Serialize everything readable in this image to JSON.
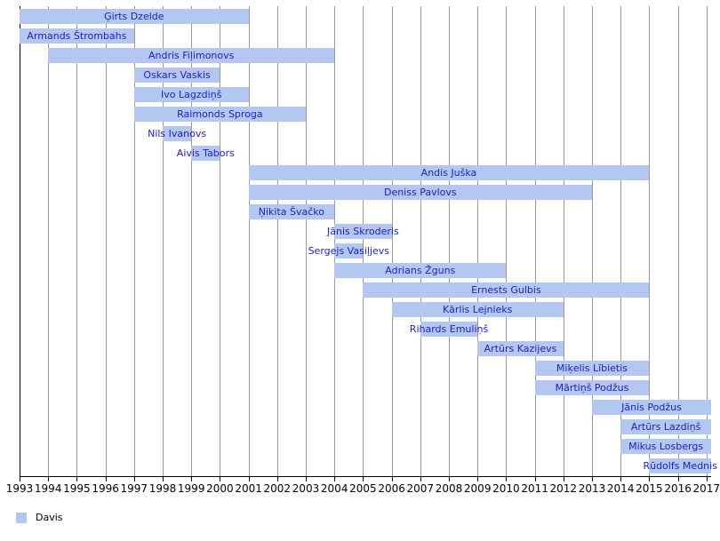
{
  "legend": {
    "label": "Davis"
  },
  "colors": {
    "background": "#ffffff",
    "bar_fill": "#b3c7f1",
    "bar_text": "#2020c0",
    "gridline": "#999999",
    "axis": "#000000",
    "label_text": "#000000"
  },
  "chart_data": {
    "type": "bar",
    "subtype": "gantt-timeline",
    "title": "",
    "xlabel": "",
    "ylabel": "",
    "grid": "vertical-yearly",
    "legend_entries": [
      "Davis"
    ],
    "legend_position": "bottom-left",
    "x_axis": {
      "min": 1993,
      "max": 2017.2,
      "tick_years": [
        1993,
        1994,
        1995,
        1996,
        1997,
        1998,
        1999,
        2000,
        2001,
        2002,
        2003,
        2004,
        2005,
        2006,
        2007,
        2008,
        2009,
        2010,
        2011,
        2012,
        2013,
        2014,
        2015,
        2016,
        2017
      ],
      "tick_labels": [
        "1993",
        "1994",
        "1995",
        "1996",
        "1997",
        "1998",
        "1999",
        "2000",
        "2001",
        "2002",
        "2003",
        "2004",
        "2005",
        "2006",
        "2007",
        "2008",
        "2009",
        "2010",
        "2011",
        "2012",
        "2013",
        "2014",
        "2015",
        "2016",
        "2017"
      ]
    },
    "bars": [
      {
        "name": "Ģirts Dzelde",
        "start": 1993,
        "end": 2001
      },
      {
        "name": "Armands Štrombahs",
        "start": 1993,
        "end": 1997
      },
      {
        "name": "Andris Fiļimonovs",
        "start": 1994,
        "end": 2004
      },
      {
        "name": "Oskars Vaskis",
        "start": 1997,
        "end": 2000
      },
      {
        "name": "Ivo Lagzdiņš",
        "start": 1997,
        "end": 2001
      },
      {
        "name": "Raimonds Sproga",
        "start": 1997,
        "end": 2003
      },
      {
        "name": "Nils Ivanovs",
        "start": 1998,
        "end": 1999
      },
      {
        "name": "Aivis Tabors",
        "start": 1999,
        "end": 2000
      },
      {
        "name": "Andis Juška",
        "start": 2001,
        "end": 2015
      },
      {
        "name": "Deniss Pavlovs",
        "start": 2001,
        "end": 2013
      },
      {
        "name": "Ņikita Švačko",
        "start": 2001,
        "end": 2004
      },
      {
        "name": "Jānis Skroderis",
        "start": 2004,
        "end": 2006
      },
      {
        "name": "Sergejs Vasiļjevs",
        "start": 2004,
        "end": 2005
      },
      {
        "name": "Adrians Žguns",
        "start": 2004,
        "end": 2010
      },
      {
        "name": "Ernests Gulbis",
        "start": 2005,
        "end": 2015
      },
      {
        "name": "Kārlis Lejnieks",
        "start": 2006,
        "end": 2012
      },
      {
        "name": "Rihards Emuliņš",
        "start": 2007,
        "end": 2009
      },
      {
        "name": "Artūrs Kazijevs",
        "start": 2009,
        "end": 2012
      },
      {
        "name": "Miķelis Lībietis",
        "start": 2011,
        "end": 2015
      },
      {
        "name": "Mārtiņš Podžus",
        "start": 2011,
        "end": 2015
      },
      {
        "name": "Jānis Podžus",
        "start": 2013,
        "end": 2017.2,
        "clipped_right": true
      },
      {
        "name": "Artūrs Lazdiņš",
        "start": 2014,
        "end": 2017.2,
        "clipped_right": true
      },
      {
        "name": "Mikus Losbergs",
        "start": 2014,
        "end": 2017.2,
        "clipped_right": true
      },
      {
        "name": "Rūdolfs Mednis",
        "start": 2015,
        "end": 2017.2,
        "clipped_right": true
      }
    ]
  }
}
